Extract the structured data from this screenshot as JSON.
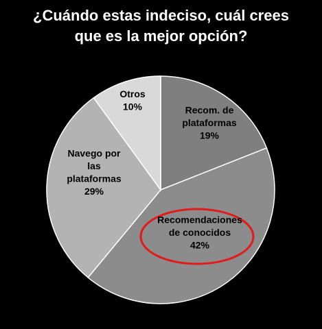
{
  "chart_data": {
    "type": "pie",
    "title_lines": [
      "¿Cuándo estas indeciso, cuál crees",
      "que es la mejor opción?"
    ],
    "slices": [
      {
        "label_lines": [
          "Recom. de",
          "plataformas",
          "19%"
        ],
        "value": 19,
        "color": "#7f7f7f"
      },
      {
        "label_lines": [
          "Recomendaciones",
          "de conocidos",
          "42%"
        ],
        "value": 42,
        "color": "#8c8c8c",
        "highlighted": true
      },
      {
        "label_lines": [
          "Navego por",
          "las",
          "plataformas",
          "29%"
        ],
        "value": 29,
        "color": "#b3b3b3"
      },
      {
        "label_lines": [
          "Otros",
          "10%"
        ],
        "value": 10,
        "color": "#d9d9d9"
      }
    ],
    "start_angle_deg": 0,
    "direction": "clockwise",
    "slice_border_color": "#ffffff",
    "highlight_color": "#e21a1a"
  }
}
